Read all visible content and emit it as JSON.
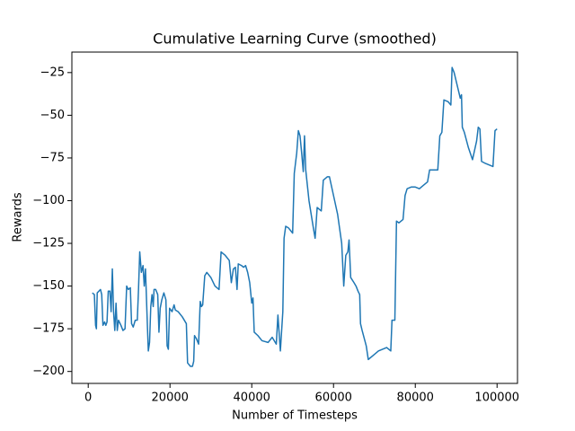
{
  "chart_data": {
    "type": "line",
    "title": "Cumulative Learning Curve (smoothed)",
    "xlabel": "Number of Timesteps",
    "ylabel": "Rewards",
    "color": "#1f77b4",
    "grid": false,
    "xlim": [
      -4000,
      105000
    ],
    "ylim": [
      -207,
      -13
    ],
    "xticks": [
      0,
      20000,
      40000,
      60000,
      80000,
      100000
    ],
    "yticks": [
      {
        "value": -200,
        "label": "−200"
      },
      {
        "value": -175,
        "label": "−175"
      },
      {
        "value": -150,
        "label": "−150"
      },
      {
        "value": -125,
        "label": "−125"
      },
      {
        "value": -100,
        "label": "−100"
      },
      {
        "value": -75,
        "label": "−75"
      },
      {
        "value": -50,
        "label": "−50"
      },
      {
        "value": -25,
        "label": "−25"
      }
    ],
    "x": [
      1000,
      1500,
      1800,
      2000,
      2200,
      3000,
      3300,
      3600,
      4000,
      4300,
      4600,
      4900,
      5300,
      5600,
      5900,
      6200,
      6500,
      6800,
      7100,
      7400,
      8000,
      8500,
      9000,
      9400,
      9800,
      10300,
      10600,
      11000,
      11500,
      12000,
      12300,
      12600,
      13000,
      13400,
      13700,
      14000,
      14500,
      14700,
      15000,
      15300,
      15600,
      15900,
      16100,
      16500,
      17000,
      17300,
      17600,
      18000,
      18500,
      19000,
      19300,
      19600,
      19900,
      20500,
      21000,
      21300,
      22000,
      23000,
      24000,
      24300,
      25000,
      25500,
      25800,
      26000,
      26500,
      27000,
      27400,
      27700,
      28000,
      28500,
      29000,
      30000,
      31000,
      32000,
      32500,
      33500,
      34500,
      35000,
      35500,
      36000,
      36400,
      36700,
      37500,
      38000,
      38500,
      39000,
      39500,
      40000,
      40300,
      40600,
      41500,
      42500,
      44000,
      45000,
      46000,
      46400,
      47000,
      47600,
      47900,
      48300,
      49000,
      50000,
      50400,
      51000,
      51400,
      51800,
      52200,
      52600,
      52900,
      53200,
      54000,
      55000,
      55500,
      56000,
      57000,
      57500,
      58500,
      59000,
      60000,
      61000,
      62000,
      62500,
      63000,
      63500,
      63800,
      64200,
      65000,
      65500,
      66000,
      66400,
      66600,
      67000,
      68000,
      68500,
      70000,
      71000,
      73000,
      74000,
      74300,
      75000,
      75400,
      76000,
      77000,
      77500,
      78000,
      79000,
      80000,
      81000,
      82000,
      83000,
      83500,
      84500,
      85500,
      86000,
      86500,
      87000,
      88000,
      88700,
      89000,
      89500,
      90000,
      90500,
      91000,
      91300,
      91500,
      92000,
      93000,
      94000,
      95000,
      95400,
      95800,
      96200,
      97000,
      98000,
      99000,
      99500,
      100000
    ],
    "values": [
      -154,
      -155,
      -173,
      -175,
      -154,
      -152,
      -155,
      -173,
      -171,
      -173,
      -171,
      -153,
      -153,
      -165,
      -140,
      -165,
      -176,
      -160,
      -176,
      -170,
      -173,
      -176,
      -175,
      -150,
      -152,
      -151,
      -172,
      -174,
      -170,
      -170,
      -152,
      -130,
      -142,
      -138,
      -150,
      -140,
      -175,
      -188,
      -183,
      -162,
      -155,
      -162,
      -152,
      -152,
      -155,
      -177,
      -163,
      -158,
      -154,
      -158,
      -185,
      -187,
      -163,
      -165,
      -161,
      -164,
      -165,
      -168,
      -172,
      -195,
      -197,
      -197,
      -194,
      -179,
      -181,
      -184,
      -159,
      -162,
      -161,
      -144,
      -142,
      -145,
      -150,
      -152,
      -130,
      -132,
      -135,
      -148,
      -140,
      -139,
      -152,
      -137,
      -138,
      -139,
      -138,
      -142,
      -148,
      -160,
      -157,
      -177,
      -179,
      -182,
      -183,
      -180,
      -184,
      -167,
      -188,
      -165,
      -122,
      -115,
      -116,
      -119,
      -84,
      -72,
      -59,
      -62,
      -72,
      -83,
      -62,
      -82,
      -100,
      -115,
      -122,
      -104,
      -106,
      -88,
      -86,
      -86,
      -97,
      -108,
      -125,
      -150,
      -132,
      -130,
      -123,
      -145,
      -148,
      -150,
      -153,
      -155,
      -172,
      -176,
      -185,
      -193,
      -190,
      -188,
      -186,
      -188,
      -170,
      -170,
      -112,
      -113,
      -111,
      -97,
      -93,
      -92,
      -92,
      -93,
      -91,
      -89,
      -82,
      -82,
      -82,
      -62,
      -60,
      -41,
      -42,
      -44,
      -22,
      -25,
      -30,
      -35,
      -40,
      -38,
      -57,
      -60,
      -69,
      -76,
      -65,
      -57,
      -58,
      -77,
      -78,
      -79,
      -80,
      -59,
      -58
    ]
  }
}
